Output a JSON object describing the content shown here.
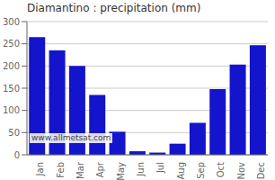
{
  "chart_data": {
    "type": "bar",
    "title": "Diamantino : precipitation (mm)",
    "categories": [
      "Jan",
      "Feb",
      "Mar",
      "Apr",
      "May",
      "Jun",
      "Jul",
      "Aug",
      "Sep",
      "Oct",
      "Nov",
      "Dec"
    ],
    "values": [
      265,
      235,
      200,
      135,
      52,
      8,
      5,
      25,
      72,
      148,
      203,
      247
    ],
    "color": "#1414CC",
    "ylim": [
      0,
      300
    ],
    "yticks": [
      0,
      50,
      100,
      150,
      200,
      250,
      300
    ],
    "grid": true,
    "annotations": [
      "www.allmetsat.com"
    ]
  }
}
